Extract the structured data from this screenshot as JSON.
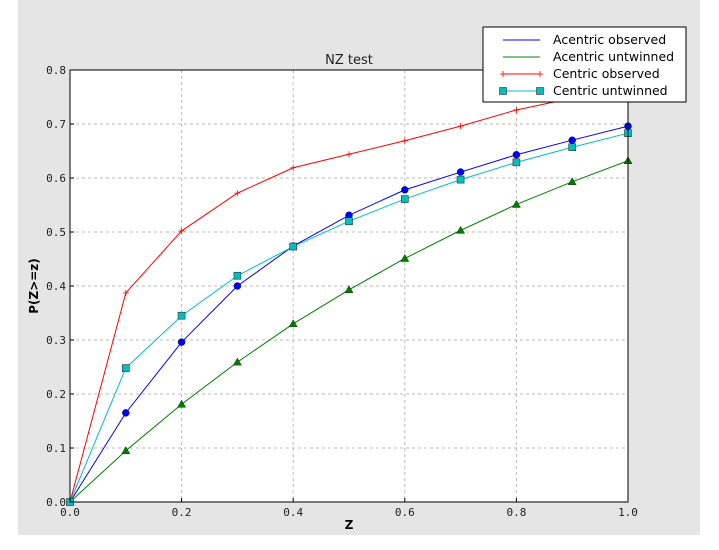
{
  "chart_data": {
    "type": "line",
    "title": "NZ test",
    "xlabel": "Z",
    "ylabel": "P(Z>=z)",
    "xlim": [
      0.0,
      1.0
    ],
    "ylim": [
      0.0,
      0.8
    ],
    "xticks": [
      "0.0",
      "0.2",
      "0.4",
      "0.6",
      "0.8",
      "1.0"
    ],
    "yticks": [
      "0.0",
      "0.1",
      "0.2",
      "0.3",
      "0.4",
      "0.5",
      "0.6",
      "0.7",
      "0.8"
    ],
    "grid": true,
    "legend_placement": "top-right",
    "x": [
      0.0,
      0.1,
      0.2,
      0.3,
      0.4,
      0.5,
      0.6,
      0.7,
      0.8,
      0.9,
      1.0
    ],
    "series": [
      {
        "name": "Acentric observed",
        "color": "#0000ff",
        "marker": "circle",
        "values": [
          0.0,
          0.165,
          0.296,
          0.4,
          0.474,
          0.531,
          0.578,
          0.611,
          0.643,
          0.67,
          0.696
        ]
      },
      {
        "name": "Acentric untwinned",
        "color": "#008000",
        "marker": "triangle",
        "values": [
          0.0,
          0.095,
          0.181,
          0.259,
          0.33,
          0.393,
          0.451,
          0.503,
          0.551,
          0.593,
          0.632
        ]
      },
      {
        "name": "Centric observed",
        "color": "#ff0000",
        "marker": "plus",
        "values": [
          0.0,
          0.387,
          0.502,
          0.572,
          0.619,
          0.644,
          0.669,
          0.696,
          0.726,
          0.748,
          0.77
        ]
      },
      {
        "name": "Centric untwinned",
        "color": "#00bfbf",
        "marker": "square",
        "values": [
          0.0,
          0.248,
          0.345,
          0.419,
          0.473,
          0.52,
          0.561,
          0.597,
          0.629,
          0.657,
          0.683
        ]
      }
    ]
  }
}
